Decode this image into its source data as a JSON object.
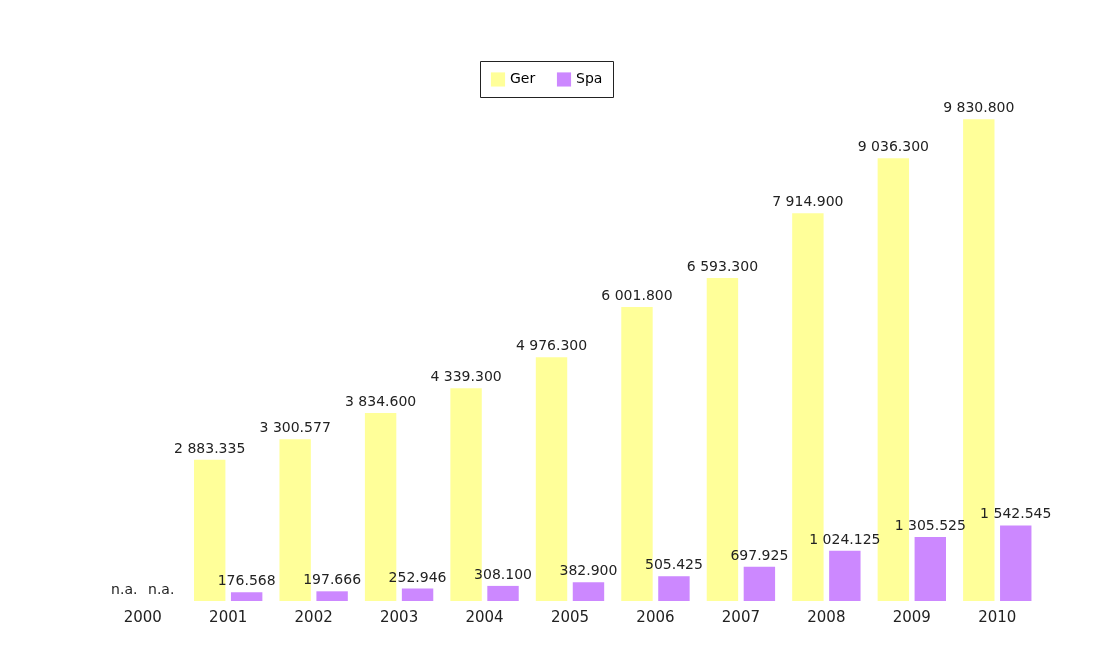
{
  "chart_data": {
    "type": "bar",
    "categories": [
      "2000",
      "2001",
      "2002",
      "2003",
      "2004",
      "2005",
      "2006",
      "2007",
      "2008",
      "2009",
      "2010"
    ],
    "series": [
      {
        "name": "Ger",
        "color": "#ffff99",
        "values": [
          null,
          2883.335,
          3300.577,
          3834.6,
          4339.3,
          4976.3,
          6001.8,
          6593.3,
          7914.9,
          9036.3,
          9830.8
        ],
        "value_labels": [
          "n.a.",
          "2 883.335",
          "3 300.577",
          "3 834.600",
          "4 339.300",
          "4 976.300",
          "6 001.800",
          "6 593.300",
          "7 914.900",
          "9 036.300",
          "9 830.800"
        ]
      },
      {
        "name": "Spa",
        "color": "#cc88ff",
        "values": [
          null,
          176.568,
          197.666,
          252.946,
          308.1,
          382.9,
          505.425,
          697.925,
          1024.125,
          1305.525,
          1542.545
        ],
        "value_labels": [
          "n.a.",
          "176.568",
          "197.666",
          "252.946",
          "308.100",
          "382.900",
          "505.425",
          "697.925",
          "1 024.125",
          "1 305.525",
          "1 542.545"
        ]
      }
    ],
    "legend": "top",
    "grid": false,
    "tick_labels": "x"
  }
}
